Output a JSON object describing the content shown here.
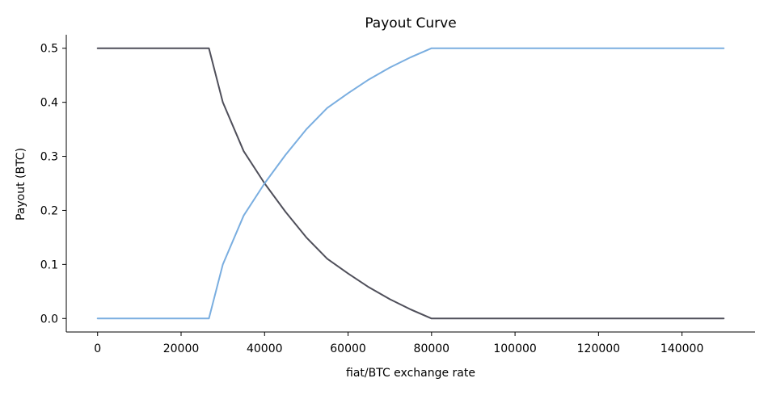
{
  "chart_data": {
    "type": "line",
    "title": "Payout Curve",
    "xlabel": "fiat/BTC exchange rate",
    "ylabel": "Payout (BTC)",
    "xlim": [
      -7500,
      157500
    ],
    "ylim": [
      -0.025,
      0.525
    ],
    "x_ticks": [
      0,
      20000,
      40000,
      60000,
      80000,
      100000,
      120000,
      140000
    ],
    "x_tick_labels": [
      "0",
      "20000",
      "40000",
      "60000",
      "80000",
      "100000",
      "120000",
      "140000"
    ],
    "y_ticks": [
      0.0,
      0.1,
      0.2,
      0.3,
      0.4,
      0.5
    ],
    "y_tick_labels": [
      "0.0",
      "0.1",
      "0.2",
      "0.3",
      "0.4",
      "0.5"
    ],
    "grid": false,
    "legend": "none",
    "series": [
      {
        "color": "#4f4f5a",
        "x": [
          0,
          26667,
          30000,
          35000,
          40000,
          45000,
          50000,
          55000,
          60000,
          65000,
          70000,
          75000,
          80000,
          150000
        ],
        "values": [
          0.5,
          0.5,
          0.4,
          0.3095,
          0.25,
          0.1975,
          0.15,
          0.1105,
          0.0833,
          0.0577,
          0.0357,
          0.0167,
          0.0,
          0.0
        ]
      },
      {
        "color": "#7aaee0",
        "x": [
          0,
          26667,
          30000,
          35000,
          40000,
          45000,
          50000,
          55000,
          60000,
          65000,
          70000,
          75000,
          80000,
          150000
        ],
        "values": [
          0.0,
          0.0,
          0.1,
          0.1905,
          0.25,
          0.3025,
          0.35,
          0.3895,
          0.4167,
          0.4423,
          0.4643,
          0.4833,
          0.5,
          0.5
        ]
      }
    ]
  }
}
